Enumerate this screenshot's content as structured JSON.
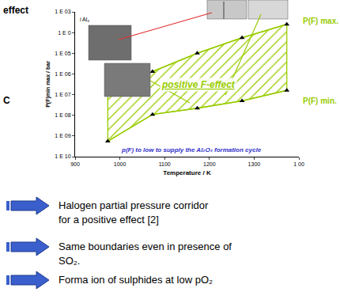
{
  "chart_data": {
    "type": "line",
    "fragments": [
      "effect",
      "C"
    ],
    "inset_label": "i Al₄",
    "xlabel": "Temperature / K",
    "ylabel": "P(F)min max / bar",
    "x": [
      973,
      1073,
      1173,
      1273,
      1373
    ],
    "series": [
      {
        "name": "P(F) max.",
        "color": "#99cc00",
        "values": [
          1e-07,
          1.3e-06,
          1e-05,
          5.6e-05,
          0.00025
        ]
      },
      {
        "name": "P(F) min.",
        "color": "#99cc00",
        "values": [
          5.6e-10,
          1.1e-08,
          2.2e-08,
          5e-08,
          1.6e-07
        ]
      }
    ],
    "region_label": "positive F-effect",
    "annotations": [
      "p(F) to low to supply the Al₂O₃ formation cycle"
    ],
    "xlim": [
      900,
      1400
    ],
    "xticks": [
      900,
      1000,
      1100,
      1200,
      1300,
      {
        "value": 1400,
        "label": "1 00"
      }
    ],
    "ylim": [
      1e-10,
      0.001
    ],
    "yticks": [
      {
        "value": 1e-10,
        "label": "1 E 10"
      },
      {
        "value": 1e-09,
        "label": "1 E 09"
      },
      {
        "value": 1e-08,
        "label": "1 E 08"
      },
      {
        "value": 1e-07,
        "label": "1 E 07"
      },
      {
        "value": 1e-06,
        "label": "1 E 06"
      },
      {
        "value": 1e-05,
        "label": "1 E 05"
      },
      {
        "value": 0.0001,
        "label": "1 E 0"
      },
      {
        "value": 0.001,
        "label": "1 E 03"
      }
    ],
    "log": "y",
    "grid": false,
    "marker": "triangle-up",
    "notes": [
      [
        "Halogen partial pressure corridor",
        "for a positive effect [2]"
      ],
      [
        "Same boundaries even in presence of",
        "SO₂."
      ],
      [
        "Forma ion of sulphides at low pO₂"
      ]
    ]
  }
}
